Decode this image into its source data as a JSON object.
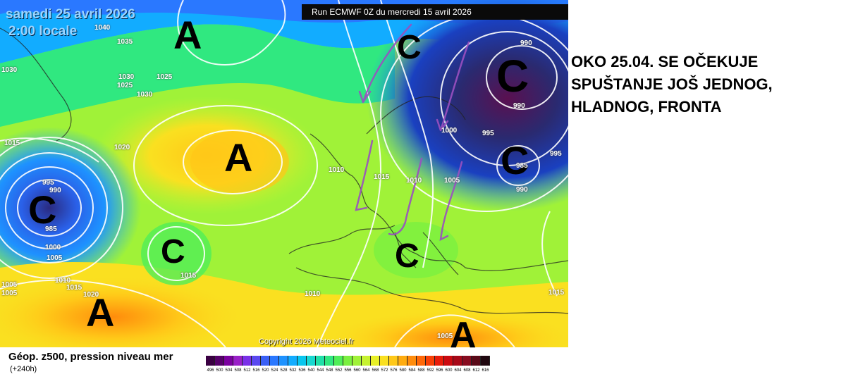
{
  "map": {
    "date": "samedi 25 avril 2026",
    "time": "2:00 locale",
    "run": "Run ECMWF 0Z du mercredi 15 avril 2026",
    "copyright": "Copyright 2026 Meteociel.fr",
    "highs_lows": [
      "A",
      "A",
      "A",
      "A",
      "C",
      "C",
      "C",
      "C",
      "C",
      "C"
    ],
    "isobar_labels": [
      "1040",
      "1035",
      "1030",
      "1030",
      "1025",
      "1025",
      "1030",
      "1015",
      "1020",
      "995",
      "990",
      "985",
      "1000",
      "1005",
      "1010",
      "1015",
      "1020",
      "1005",
      "1005",
      "1015",
      "1015",
      "1010",
      "1005",
      "1005",
      "1010",
      "1015",
      "990",
      "990",
      "995",
      "995",
      "985",
      "990",
      "1000",
      "1010"
    ]
  },
  "annotation": {
    "lines": [
      "OKO 25.04. SE OČEKUJE",
      "SPUŠTANJE JOŠ JEDNOG,",
      "HLADNOG, FRONTA"
    ]
  },
  "legend": {
    "title": "Géop. z500, pression niveau mer",
    "subtitle": "(+240h)",
    "values": [
      "496",
      "500",
      "504",
      "508",
      "512",
      "516",
      "520",
      "524",
      "528",
      "532",
      "536",
      "540",
      "544",
      "548",
      "552",
      "556",
      "560",
      "564",
      "568",
      "572",
      "576",
      "580",
      "584",
      "588",
      "592",
      "596",
      "600",
      "604",
      "608",
      "612",
      "616"
    ],
    "colors": [
      "#3a0042",
      "#56006a",
      "#7b00a0",
      "#9a20c8",
      "#7a30e8",
      "#5a48f0",
      "#3a60f6",
      "#2a78ff",
      "#1e92ff",
      "#12acff",
      "#08c6ee",
      "#18d8d0",
      "#20e0a8",
      "#30e880",
      "#50ee58",
      "#7af040",
      "#a0f238",
      "#c6f230",
      "#e8f028",
      "#fae020",
      "#ffc818",
      "#ffac10",
      "#ff8c0c",
      "#ff6808",
      "#f84006",
      "#e81c0a",
      "#cc0a10",
      "#a80818",
      "#880c20",
      "#5a0a18",
      "#200810"
    ]
  }
}
